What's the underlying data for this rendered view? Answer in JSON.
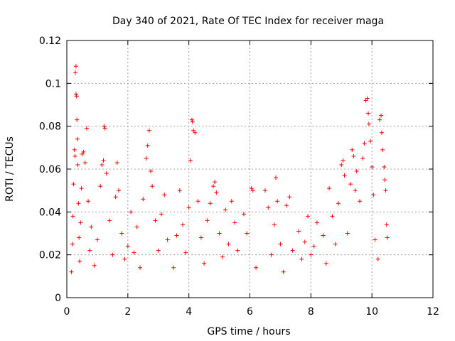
{
  "chart_data": {
    "type": "scatter",
    "title": "Day 340 of 2021, Rate Of TEC Index for receiver maga",
    "xlabel": "GPS time / hours",
    "ylabel": "ROTI / TECUs",
    "xlim": [
      0,
      12
    ],
    "ylim": [
      0,
      0.12
    ],
    "xticks": [
      0,
      2,
      4,
      6,
      8,
      10,
      12
    ],
    "yticks": [
      0,
      0.02,
      0.04,
      0.06,
      0.08,
      0.1,
      0.12
    ],
    "xtick_labels": [
      "0",
      "2",
      "4",
      "6",
      "8",
      "10",
      "12"
    ],
    "ytick_labels": [
      "0",
      "0.02",
      "0.04",
      "0.06",
      "0.08",
      "0.1",
      "0.12"
    ],
    "grid": true,
    "marker": "+",
    "color": "#ff0000",
    "series": [
      {
        "name": "ROTI",
        "points": [
          [
            0.15,
            0.012
          ],
          [
            0.18,
            0.025
          ],
          [
            0.2,
            0.038
          ],
          [
            0.22,
            0.053
          ],
          [
            0.25,
            0.069
          ],
          [
            0.27,
            0.066
          ],
          [
            0.28,
            0.105
          ],
          [
            0.3,
            0.108
          ],
          [
            0.3,
            0.095
          ],
          [
            0.32,
            0.094
          ],
          [
            0.33,
            0.083
          ],
          [
            0.35,
            0.074
          ],
          [
            0.36,
            0.062
          ],
          [
            0.38,
            0.044
          ],
          [
            0.4,
            0.028
          ],
          [
            0.42,
            0.017
          ],
          [
            0.45,
            0.035
          ],
          [
            0.48,
            0.051
          ],
          [
            0.5,
            0.067
          ],
          [
            0.55,
            0.068
          ],
          [
            0.6,
            0.063
          ],
          [
            0.65,
            0.079
          ],
          [
            0.7,
            0.045
          ],
          [
            0.75,
            0.022
          ],
          [
            0.8,
            0.033
          ],
          [
            0.9,
            0.015
          ],
          [
            1.0,
            0.027
          ],
          [
            1.1,
            0.052
          ],
          [
            1.15,
            0.062
          ],
          [
            1.2,
            0.064
          ],
          [
            1.22,
            0.08
          ],
          [
            1.25,
            0.079
          ],
          [
            1.3,
            0.058
          ],
          [
            1.4,
            0.036
          ],
          [
            1.5,
            0.02
          ],
          [
            1.6,
            0.047
          ],
          [
            1.65,
            0.063
          ],
          [
            1.7,
            0.05
          ],
          [
            1.8,
            0.03
          ],
          [
            1.9,
            0.018
          ],
          [
            2.0,
            0.024
          ],
          [
            2.1,
            0.04
          ],
          [
            2.2,
            0.021
          ],
          [
            2.3,
            0.033
          ],
          [
            2.4,
            0.014
          ],
          [
            2.5,
            0.046
          ],
          [
            2.6,
            0.065
          ],
          [
            2.65,
            0.071
          ],
          [
            2.7,
            0.078
          ],
          [
            2.75,
            0.059
          ],
          [
            2.8,
            0.052
          ],
          [
            2.9,
            0.036
          ],
          [
            3.0,
            0.022
          ],
          [
            3.1,
            0.039
          ],
          [
            3.2,
            0.048
          ],
          [
            3.3,
            0.027
          ],
          [
            3.5,
            0.014
          ],
          [
            3.6,
            0.029
          ],
          [
            3.7,
            0.05
          ],
          [
            3.8,
            0.034
          ],
          [
            3.9,
            0.021
          ],
          [
            4.0,
            0.042
          ],
          [
            4.05,
            0.064
          ],
          [
            4.1,
            0.083
          ],
          [
            4.12,
            0.082
          ],
          [
            4.15,
            0.078
          ],
          [
            4.2,
            0.077
          ],
          [
            4.3,
            0.045
          ],
          [
            4.4,
            0.028
          ],
          [
            4.5,
            0.016
          ],
          [
            4.6,
            0.036
          ],
          [
            4.7,
            0.044
          ],
          [
            4.8,
            0.052
          ],
          [
            4.85,
            0.054
          ],
          [
            4.9,
            0.049
          ],
          [
            5.0,
            0.03
          ],
          [
            5.1,
            0.019
          ],
          [
            5.2,
            0.041
          ],
          [
            5.3,
            0.025
          ],
          [
            5.4,
            0.045
          ],
          [
            5.5,
            0.035
          ],
          [
            5.6,
            0.022
          ],
          [
            5.8,
            0.039
          ],
          [
            5.9,
            0.03
          ],
          [
            6.05,
            0.051
          ],
          [
            6.1,
            0.05
          ],
          [
            6.2,
            0.014
          ],
          [
            6.5,
            0.05
          ],
          [
            6.6,
            0.042
          ],
          [
            6.7,
            0.02
          ],
          [
            6.8,
            0.034
          ],
          [
            6.85,
            0.056
          ],
          [
            6.9,
            0.045
          ],
          [
            7.0,
            0.025
          ],
          [
            7.1,
            0.012
          ],
          [
            7.2,
            0.043
          ],
          [
            7.3,
            0.047
          ],
          [
            7.4,
            0.022
          ],
          [
            7.6,
            0.031
          ],
          [
            7.7,
            0.018
          ],
          [
            7.8,
            0.026
          ],
          [
            7.9,
            0.038
          ],
          [
            8.0,
            0.02
          ],
          [
            8.1,
            0.024
          ],
          [
            8.2,
            0.035
          ],
          [
            8.4,
            0.029
          ],
          [
            8.5,
            0.016
          ],
          [
            8.6,
            0.051
          ],
          [
            8.7,
            0.038
          ],
          [
            8.8,
            0.025
          ],
          [
            8.9,
            0.044
          ],
          [
            9.0,
            0.062
          ],
          [
            9.05,
            0.064
          ],
          [
            9.1,
            0.057
          ],
          [
            9.2,
            0.03
          ],
          [
            9.3,
            0.053
          ],
          [
            9.35,
            0.069
          ],
          [
            9.4,
            0.066
          ],
          [
            9.45,
            0.05
          ],
          [
            9.5,
            0.059
          ],
          [
            9.6,
            0.045
          ],
          [
            9.7,
            0.065
          ],
          [
            9.75,
            0.072
          ],
          [
            9.8,
            0.092
          ],
          [
            9.85,
            0.093
          ],
          [
            9.88,
            0.086
          ],
          [
            9.9,
            0.081
          ],
          [
            9.95,
            0.073
          ],
          [
            10.0,
            0.061
          ],
          [
            10.05,
            0.048
          ],
          [
            10.1,
            0.027
          ],
          [
            10.2,
            0.018
          ],
          [
            10.25,
            0.083
          ],
          [
            10.3,
            0.085
          ],
          [
            10.32,
            0.077
          ],
          [
            10.35,
            0.069
          ],
          [
            10.4,
            0.061
          ],
          [
            10.42,
            0.055
          ],
          [
            10.45,
            0.05
          ],
          [
            10.48,
            0.034
          ],
          [
            10.5,
            0.028
          ]
        ]
      }
    ]
  }
}
